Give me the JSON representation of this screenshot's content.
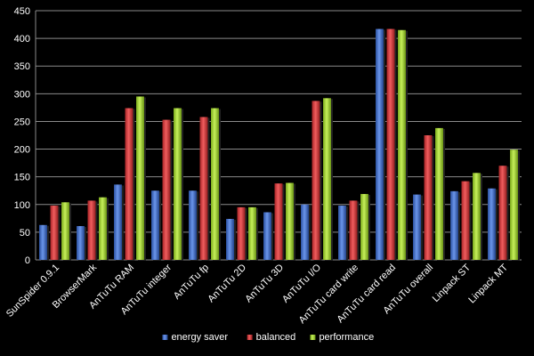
{
  "chart_data": {
    "type": "bar",
    "title": "",
    "xlabel": "",
    "ylabel": "",
    "ylim": [
      0,
      450
    ],
    "yticks": [
      0,
      50,
      100,
      150,
      200,
      250,
      300,
      350,
      400,
      450
    ],
    "grid": true,
    "legend_position": "bottom",
    "categories": [
      "SunSpider 0.9.1",
      "BrowserMark",
      "AnTuTu RAM",
      "AnTuTu integer",
      "AnTuTu fp",
      "AnTuTu 2D",
      "AnTuTu 3D",
      "AnTuTu I/O",
      "AnTuTu card write",
      "AnTuTu card read",
      "AnTuTu overall",
      "Linpack ST",
      "Linpack MT"
    ],
    "series": [
      {
        "name": "energy saver",
        "color": "#3f6fd0",
        "values": [
          63,
          61,
          136,
          125,
          125,
          74,
          86,
          100,
          98,
          417,
          118,
          124,
          129
        ]
      },
      {
        "name": "balanced",
        "color": "#d6393a",
        "values": [
          98,
          107,
          274,
          253,
          258,
          95,
          138,
          287,
          107,
          417,
          225,
          142,
          170
        ]
      },
      {
        "name": "performance",
        "color": "#a2d82d",
        "values": [
          104,
          113,
          295,
          274,
          274,
          95,
          139,
          292,
          119,
          415,
          238,
          157,
          199
        ]
      }
    ]
  }
}
